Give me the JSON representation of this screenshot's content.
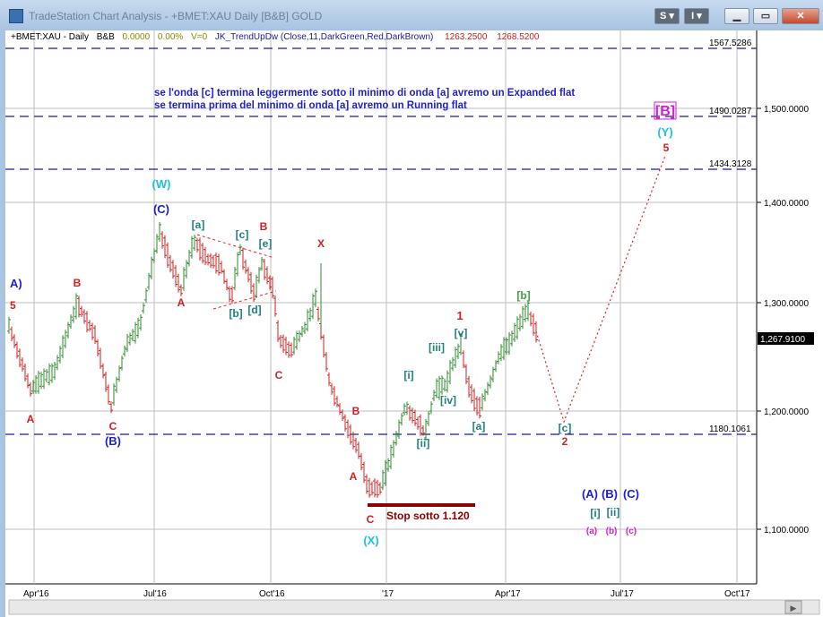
{
  "window": {
    "title": "TradeStation Chart Analysis - +BMET:XAU Daily [B&B] GOLD",
    "buttons": {
      "s_label": "S",
      "i_label": "I"
    }
  },
  "header": {
    "symbol": "+BMET:XAU - Daily",
    "style": "B&B",
    "change": "0.0000",
    "change_pct": "0.00%",
    "volume": "V=0",
    "indicator": "JK_TrendUpDw (Close,11,DarkGreen,Red,DarkBrown)",
    "value1": "1263.2500",
    "value2": "1268.5200"
  },
  "notes": {
    "line1": "se l'onda [c] termina leggermente sotto il minimo di onda [a] avremo un Expanded flat",
    "line2": "se termina prima del minimo di onda [a] avremo un  Running flat"
  },
  "stop_label": "Stop sotto 1.120",
  "price_axis": {
    "ticks": [
      "1,500.0000",
      "1,400.0000",
      "1,300.0000",
      "1,200.0000",
      "1,100.0000"
    ],
    "current_price": "1,267.9100"
  },
  "levels": [
    "1567.5286",
    "1490.0287",
    "1434.3128",
    "1180.1061"
  ],
  "date_axis": [
    "Apr'16",
    "Jul'16",
    "Oct'16",
    "'17",
    "Apr'17",
    "Jul'17",
    "Oct'17"
  ],
  "wave_labels": [
    {
      "text": "A)",
      "color": "#2020cc"
    },
    {
      "text": "5",
      "color": "#d02020"
    },
    {
      "text": "A",
      "color": "#d02020"
    },
    {
      "text": "B",
      "color": "#d02020"
    },
    {
      "text": "C",
      "color": "#d02020"
    },
    {
      "text": "(B)",
      "color": "#2020cc"
    },
    {
      "text": "(W)",
      "color": "#20c0e0"
    },
    {
      "text": "(C)",
      "color": "#2020cc"
    },
    {
      "text": "A",
      "color": "#d02020"
    },
    {
      "text": "[a]",
      "color": "#208080"
    },
    {
      "text": "[c]",
      "color": "#208080"
    },
    {
      "text": "B",
      "color": "#d02020"
    },
    {
      "text": "[e]",
      "color": "#208080"
    },
    {
      "text": "[b]",
      "color": "#208080"
    },
    {
      "text": "[d]",
      "color": "#208080"
    },
    {
      "text": "C",
      "color": "#d02020"
    },
    {
      "text": "X",
      "color": "#d02020"
    },
    {
      "text": "B",
      "color": "#d02020"
    },
    {
      "text": "A",
      "color": "#d02020"
    },
    {
      "text": "C",
      "color": "#d02020"
    },
    {
      "text": "(X)",
      "color": "#20c0e0"
    },
    {
      "text": "[i]",
      "color": "#208080"
    },
    {
      "text": "[ii]",
      "color": "#208080"
    },
    {
      "text": "[iii]",
      "color": "#208080"
    },
    {
      "text": "[iv]",
      "color": "#208080"
    },
    {
      "text": "[v]",
      "color": "#208080"
    },
    {
      "text": "1",
      "color": "#d02020"
    },
    {
      "text": "[a]",
      "color": "#208080"
    },
    {
      "text": "[b]",
      "color": "#40a040"
    },
    {
      "text": "[c]",
      "color": "#208080"
    },
    {
      "text": "2",
      "color": "#d02020"
    },
    {
      "text": "[B]",
      "color": "#d020d0"
    },
    {
      "text": "(Y)",
      "color": "#20c0e0"
    },
    {
      "text": "5",
      "color": "#d02020"
    },
    {
      "text": "(A)",
      "color": "#2020cc"
    },
    {
      "text": "(B)",
      "color": "#2020cc"
    },
    {
      "text": "(C)",
      "color": "#2020cc"
    },
    {
      "text": "[i]",
      "color": "#208080"
    },
    {
      "text": "[ii]",
      "color": "#208080"
    },
    {
      "text": "(a)",
      "color": "#d020d0"
    },
    {
      "text": "(b)",
      "color": "#d020d0"
    },
    {
      "text": "(c)",
      "color": "#d020d0"
    }
  ],
  "colors": {
    "up_bar": "#2e8b2e",
    "down_bar": "#cc2020",
    "level_line": "#1a1a99",
    "stop": "#8b0000",
    "projection": "#e02020"
  }
}
